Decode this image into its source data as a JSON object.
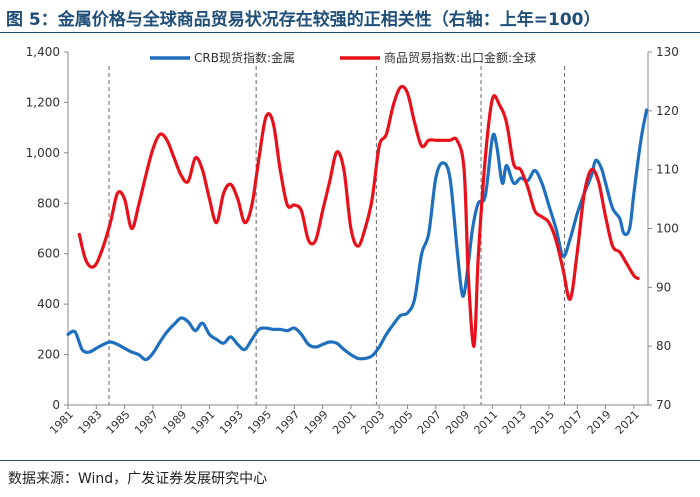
{
  "header": {
    "title": "图 5：金属价格与全球商品贸易状况存在较强的正相关性（右轴：上年=100）"
  },
  "footer": {
    "source": "数据来源：Wind，广发证券发展研究中心"
  },
  "colors": {
    "crb": "#1f6fbf",
    "trade": "#e8101a",
    "title": "#1f4e79"
  },
  "chart_data": {
    "type": "line",
    "title": "",
    "xlabel": "",
    "ylabel": "",
    "xlim": [
      1981,
      2022
    ],
    "ylim_left": [
      0,
      1400
    ],
    "ylim_right": [
      70,
      130
    ],
    "left_ticks": [
      "0",
      "200",
      "400",
      "600",
      "800",
      "1,000",
      "1,200",
      "1,400"
    ],
    "left_tick_values": [
      0,
      200,
      400,
      600,
      800,
      1000,
      1200,
      1400
    ],
    "right_ticks": [
      "70",
      "80",
      "90",
      "100",
      "110",
      "120",
      "130"
    ],
    "right_tick_values": [
      70,
      80,
      90,
      100,
      110,
      120,
      130
    ],
    "x_ticks": [
      "1981",
      "1983",
      "1985",
      "1987",
      "1989",
      "1991",
      "1993",
      "1995",
      "1997",
      "1999",
      "2001",
      "2003",
      "2005",
      "2007",
      "2009",
      "2011",
      "2013",
      "2015",
      "2017",
      "2019",
      "2021"
    ],
    "x_tick_values": [
      1981,
      1983,
      1985,
      1987,
      1989,
      1991,
      1993,
      1995,
      1997,
      1999,
      2001,
      2003,
      2005,
      2007,
      2009,
      2011,
      2013,
      2015,
      2017,
      2019,
      2021
    ],
    "vlines": [
      1983.9,
      1994.3,
      2002.8,
      2010.2,
      2016.1
    ],
    "legend": {
      "placement": "top"
    },
    "series": [
      {
        "name": "CRB现货指数:金属",
        "axis": "left",
        "x": [
          1981,
          1981.5,
          1982,
          1982.5,
          1983,
          1983.5,
          1984,
          1984.5,
          1985,
          1985.5,
          1986,
          1986.5,
          1987,
          1987.5,
          1988,
          1988.5,
          1989,
          1989.5,
          1990,
          1990.5,
          1991,
          1991.5,
          1992,
          1992.5,
          1993,
          1993.5,
          1994,
          1994.5,
          1995,
          1995.5,
          1996,
          1996.5,
          1997,
          1997.5,
          1998,
          1998.5,
          1999,
          1999.5,
          2000,
          2000.5,
          2001,
          2001.5,
          2002,
          2002.5,
          2003,
          2003.5,
          2004,
          2004.5,
          2005,
          2005.5,
          2006,
          2006.5,
          2007,
          2007.5,
          2008,
          2008.5,
          2008.8,
          2009,
          2009.3,
          2009.6,
          2010,
          2010.5,
          2011,
          2011.3,
          2011.7,
          2012,
          2012.5,
          2013,
          2013.5,
          2014,
          2014.5,
          2015,
          2015.5,
          2016,
          2016.5,
          2017,
          2017.5,
          2018,
          2018.3,
          2018.7,
          2019,
          2019.5,
          2020,
          2020.3,
          2020.7,
          2021,
          2021.5,
          2021.9
        ],
        "values": [
          280,
          290,
          220,
          210,
          225,
          240,
          250,
          240,
          225,
          210,
          200,
          180,
          205,
          250,
          290,
          320,
          345,
          330,
          295,
          325,
          280,
          260,
          245,
          270,
          240,
          220,
          260,
          300,
          305,
          300,
          300,
          295,
          305,
          280,
          240,
          230,
          240,
          250,
          245,
          220,
          200,
          185,
          185,
          195,
          230,
          280,
          320,
          355,
          365,
          420,
          600,
          680,
          900,
          960,
          900,
          620,
          460,
          440,
          560,
          700,
          800,
          830,
          1060,
          1030,
          880,
          950,
          880,
          900,
          890,
          930,
          880,
          790,
          700,
          590,
          660,
          760,
          840,
          910,
          970,
          940,
          880,
          780,
          740,
          680,
          700,
          840,
          1050,
          1170
        ]
      },
      {
        "name": "商品贸易指数:出口金额:全球",
        "axis": "right",
        "x": [
          1981.8,
          1982.2,
          1982.6,
          1983,
          1983.5,
          1984,
          1984.5,
          1985,
          1985.5,
          1986,
          1986.5,
          1987,
          1987.5,
          1988,
          1988.5,
          1989,
          1989.5,
          1990,
          1990.5,
          1991,
          1991.5,
          1992,
          1992.5,
          1993,
          1993.5,
          1994,
          1994.5,
          1995,
          1995.5,
          1996,
          1996.5,
          1997,
          1997.5,
          1998,
          1998.5,
          1999,
          1999.5,
          2000,
          2000.5,
          2001,
          2001.5,
          2002,
          2002.5,
          2003,
          2003.5,
          2004,
          2004.5,
          2005,
          2005.5,
          2006,
          2006.5,
          2007,
          2007.5,
          2008,
          2008.5,
          2009,
          2009.3,
          2009.7,
          2010,
          2010.5,
          2011,
          2011.5,
          2012,
          2012.5,
          2013,
          2013.5,
          2014,
          2014.5,
          2015,
          2015.5,
          2016,
          2016.5,
          2017,
          2017.5,
          2018,
          2018.5,
          2019,
          2019.5,
          2020,
          2020.5,
          2021,
          2021.3
        ],
        "values": [
          99,
          95,
          93.5,
          94,
          97,
          101,
          106,
          105,
          100,
          104,
          109,
          113.5,
          116,
          115,
          112,
          109,
          108,
          112,
          110,
          105,
          101,
          106,
          107.5,
          105,
          101,
          104,
          112,
          119,
          118,
          110,
          104,
          104,
          103,
          98,
          98,
          103,
          108,
          113,
          110,
          100,
          97,
          100,
          105,
          114,
          116,
          121,
          124,
          123,
          118,
          114,
          115,
          115,
          115,
          115,
          115,
          110,
          92,
          80,
          95,
          112,
          122,
          121,
          118,
          111,
          110,
          107,
          103,
          102,
          101,
          98,
          93,
          88,
          96,
          106,
          110,
          108,
          102,
          97,
          96,
          94,
          92,
          91.5
        ]
      }
    ]
  }
}
